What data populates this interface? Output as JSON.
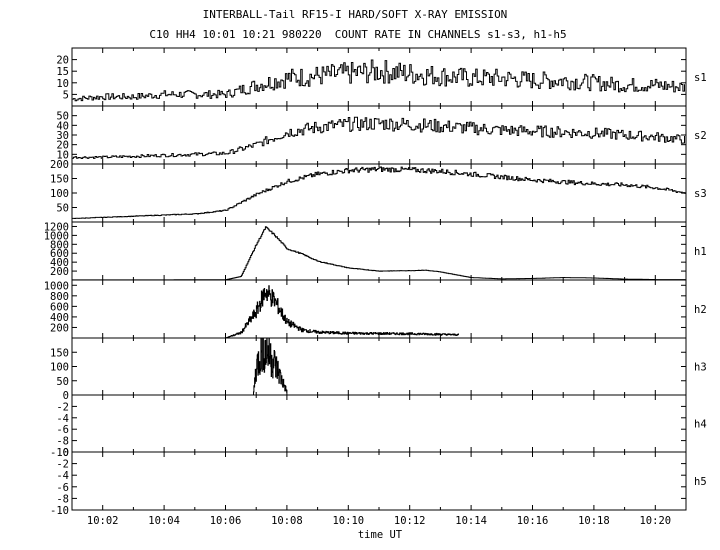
{
  "title_line1": "INTERBALL-Tail RF15-I HARD/SOFT X-RAY EMISSION",
  "title_line2": "C10 HH4 10:01 10:21 980220  COUNT RATE IN CHANNELS s1-s3, h1-h5",
  "chart_data": {
    "type": "line",
    "title": "INTERBALL-Tail RF15-I HARD/SOFT X-RAY EMISSION",
    "subtitle": "C10 HH4 10:01 10:21 980220  COUNT RATE IN CHANNELS s1-s3, h1-h5",
    "xlabel": "time UT",
    "xlim": [
      "10:01",
      "10:21"
    ],
    "x_ticks": [
      "10:02",
      "10:04",
      "10:06",
      "10:08",
      "10:10",
      "10:12",
      "10:14",
      "10:16",
      "10:18",
      "10:20"
    ],
    "panels": [
      {
        "name": "s1",
        "ylim": [
          0,
          25
        ],
        "yticks": [
          "5",
          "10",
          "15",
          "20"
        ],
        "x": [
          "10:01",
          "10:02",
          "10:03",
          "10:04",
          "10:05",
          "10:06",
          "10:07",
          "10:08",
          "10:09",
          "10:10",
          "10:11",
          "10:12",
          "10:13",
          "10:14",
          "10:15",
          "10:16",
          "10:17",
          "10:18",
          "10:19",
          "10:20",
          "10:21"
        ],
        "values": [
          3,
          4,
          4,
          5,
          5,
          5,
          9,
          12,
          13,
          14,
          15,
          14,
          13,
          12,
          12,
          11,
          11,
          10,
          9,
          9,
          8
        ]
      },
      {
        "name": "s2",
        "ylim": [
          0,
          60
        ],
        "yticks": [
          "10",
          "20",
          "30",
          "40",
          "50"
        ],
        "x": [
          "10:01",
          "10:02",
          "10:03",
          "10:04",
          "10:05",
          "10:06",
          "10:07",
          "10:08",
          "10:09",
          "10:10",
          "10:11",
          "10:12",
          "10:13",
          "10:14",
          "10:15",
          "10:16",
          "10:17",
          "10:18",
          "10:19",
          "10:20",
          "10:21"
        ],
        "values": [
          7,
          7,
          8,
          9,
          10,
          11,
          20,
          33,
          38,
          41,
          42,
          41,
          39,
          37,
          35,
          34,
          33,
          32,
          30,
          28,
          25
        ]
      },
      {
        "name": "s3",
        "ylim": [
          0,
          200
        ],
        "yticks": [
          "50",
          "100",
          "150",
          "200"
        ],
        "x": [
          "10:01",
          "10:02",
          "10:03",
          "10:04",
          "10:05",
          "10:06",
          "10:07",
          "10:08",
          "10:09",
          "10:10",
          "10:11",
          "10:12",
          "10:13",
          "10:14",
          "10:15",
          "10:16",
          "10:17",
          "10:18",
          "10:19",
          "10:20",
          "10:21"
        ],
        "values": [
          12,
          16,
          20,
          24,
          28,
          40,
          95,
          140,
          165,
          178,
          182,
          180,
          175,
          165,
          155,
          145,
          138,
          132,
          128,
          118,
          100
        ]
      },
      {
        "name": "h1",
        "ylim": [
          0,
          1300
        ],
        "yticks": [
          "200",
          "400",
          "600",
          "800",
          "1000",
          "1200"
        ],
        "x": [
          "10:01",
          "10:04",
          "10:06",
          "10:06.5",
          "10:07",
          "10:07.3",
          "10:07.6",
          "10:08",
          "10:08.5",
          "10:09",
          "10:10",
          "10:11",
          "10:12",
          "10:12.5",
          "10:13",
          "10:14",
          "10:15",
          "10:16",
          "10:17",
          "10:18",
          "10:19",
          "10:20",
          "10:21"
        ],
        "values": [
          2,
          3,
          5,
          80,
          800,
          1180,
          1000,
          700,
          580,
          420,
          270,
          200,
          210,
          220,
          180,
          55,
          25,
          35,
          55,
          45,
          20,
          10,
          8
        ]
      },
      {
        "name": "h2",
        "ylim": [
          0,
          1100
        ],
        "yticks": [
          "200",
          "400",
          "600",
          "800",
          "1000"
        ],
        "x": [
          "10:06",
          "10:06.5",
          "10:07",
          "10:07.3",
          "10:07.6",
          "10:08",
          "10:08.5",
          "10:09",
          "10:10",
          "10:11",
          "10:12",
          "10:13",
          "10:13.6"
        ],
        "values": [
          0,
          100,
          500,
          900,
          700,
          300,
          150,
          110,
          90,
          85,
          80,
          70,
          60
        ]
      },
      {
        "name": "h3",
        "ylim": [
          0,
          200
        ],
        "yticks": [
          "50",
          "100",
          "150"
        ],
        "x": [
          "10:06.9",
          "10:07",
          "10:07.2",
          "10:07.4",
          "10:07.6",
          "10:07.8",
          "10:08"
        ],
        "values": [
          0,
          100,
          165,
          150,
          110,
          60,
          10
        ]
      },
      {
        "name": "h4",
        "ylim": [
          -10,
          0
        ],
        "yticks": [
          "-10",
          "-8",
          "-6",
          "-4",
          "-2",
          "0"
        ],
        "x": [],
        "values": []
      },
      {
        "name": "h5",
        "ylim": [
          -10,
          0
        ],
        "yticks": [
          "-10",
          "-8",
          "-6",
          "-4",
          "-2",
          "0"
        ],
        "x": [],
        "values": []
      }
    ]
  }
}
